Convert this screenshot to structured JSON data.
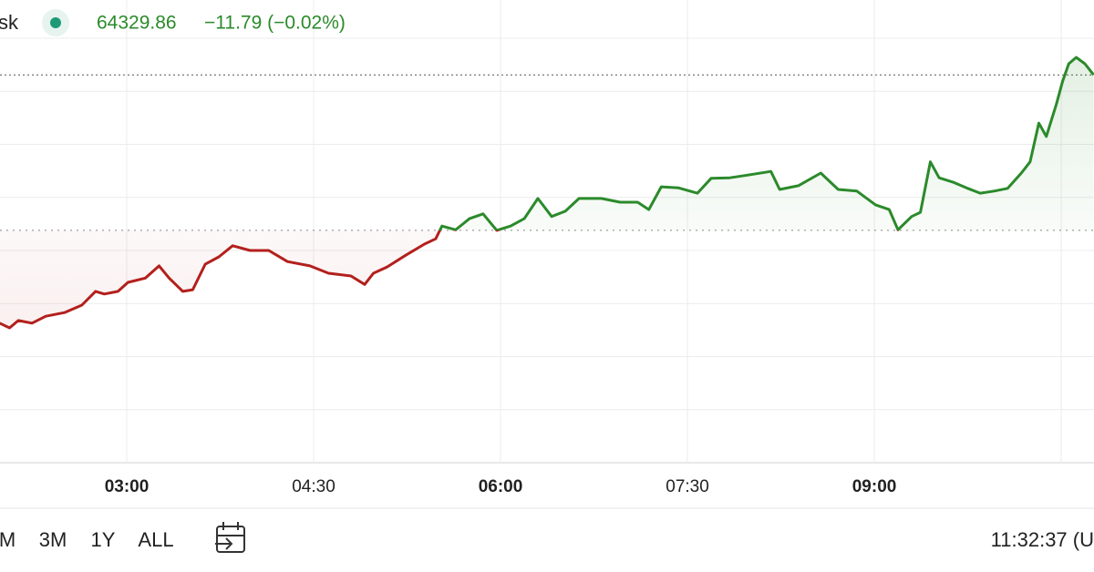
{
  "header": {
    "symbol": "sk",
    "price": "64329.86",
    "change": "−11.79 (−0.02%)"
  },
  "chart_data": {
    "type": "line",
    "x": [
      1.98,
      2.06,
      2.13,
      2.24,
      2.35,
      2.5,
      2.64,
      2.75,
      2.82,
      2.93,
      3.01,
      3.15,
      3.26,
      3.34,
      3.45,
      3.53,
      3.63,
      3.74,
      3.85,
      3.99,
      4.14,
      4.29,
      4.47,
      4.62,
      4.8,
      4.91,
      4.98,
      5.09,
      5.24,
      5.39,
      5.48,
      5.53,
      5.64,
      5.75,
      5.86,
      5.97,
      6.08,
      6.19,
      6.3,
      6.41,
      6.52,
      6.63,
      6.81,
      6.96,
      7.1,
      7.19,
      7.29,
      7.43,
      7.58,
      7.69,
      7.84,
      7.98,
      8.17,
      8.24,
      8.39,
      8.57,
      8.71,
      8.86,
      9.01,
      9.12,
      9.19,
      9.3,
      9.37,
      9.45,
      9.52,
      9.63,
      9.74,
      9.85,
      9.96,
      10.07,
      10.18,
      10.25,
      10.32,
      10.38,
      10.46,
      10.51,
      10.56,
      10.62,
      10.69,
      10.76
    ],
    "values": [
      26.3,
      25.4,
      26.8,
      26.3,
      27.6,
      28.3,
      29.7,
      32.3,
      31.8,
      32.3,
      34.0,
      34.8,
      37.1,
      34.8,
      32.3,
      32.6,
      37.4,
      38.8,
      40.9,
      40.0,
      40.0,
      37.9,
      37.1,
      35.7,
      35.2,
      33.6,
      35.7,
      36.9,
      39.1,
      41.2,
      42.2,
      44.6,
      43.9,
      46.0,
      46.9,
      43.8,
      44.6,
      46.0,
      49.8,
      46.4,
      47.4,
      49.8,
      49.8,
      49.1,
      49.1,
      47.7,
      52.0,
      51.8,
      50.8,
      53.6,
      53.7,
      54.2,
      54.9,
      51.5,
      52.2,
      54.6,
      51.5,
      51.2,
      48.6,
      47.7,
      43.9,
      46.4,
      47.2,
      56.7,
      53.7,
      52.9,
      51.8,
      50.8,
      51.2,
      51.7,
      54.6,
      56.7,
      64.0,
      61.5,
      67.5,
      71.8,
      75.2,
      76.4,
      75.2,
      73.1
    ],
    "up_color": "#2b8a2b",
    "down_color": "#b3201c",
    "baseline": 43.8,
    "price_line": 73.1,
    "xlim": [
      1.983,
      10.763
    ],
    "ylim": [
      0,
      80
    ],
    "xticks": [
      {
        "value": 3,
        "label": "03:00",
        "bold": true
      },
      {
        "value": 4.5,
        "label": "04:30",
        "bold": false
      },
      {
        "value": 6,
        "label": "06:00",
        "bold": true
      },
      {
        "value": 7.5,
        "label": "07:30",
        "bold": false
      },
      {
        "value": 9,
        "label": "09:00",
        "bold": true
      }
    ],
    "xgrid": [
      3,
      4.5,
      6,
      7.5,
      9,
      10.5
    ],
    "ygrid": [
      0,
      10,
      20,
      30,
      40,
      50,
      60,
      70,
      80
    ]
  },
  "footer": {
    "ranges": [
      "M",
      "3M",
      "1Y",
      "ALL"
    ],
    "clock": "11:32:37 (U"
  }
}
